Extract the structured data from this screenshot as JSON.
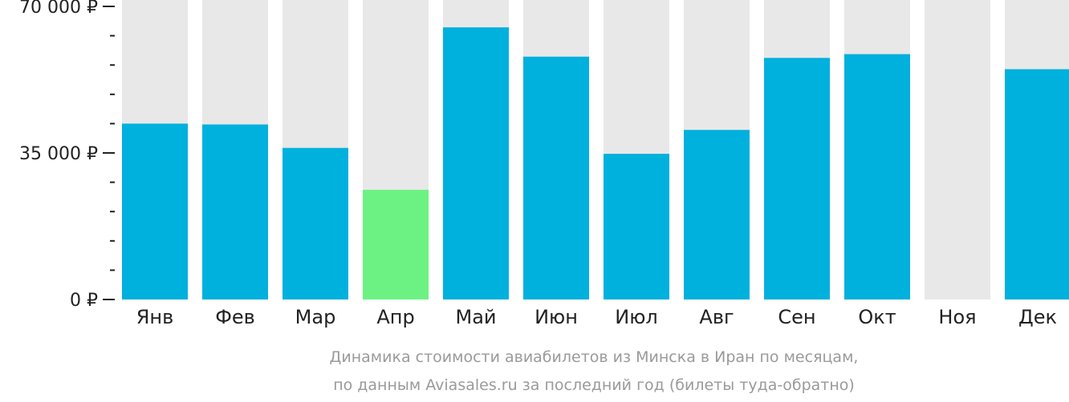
{
  "chart_data": {
    "type": "bar",
    "title": "",
    "xlabel": "",
    "ylabel": "",
    "ylim": [
      0,
      70000
    ],
    "y_ticks": [
      {
        "value": 0,
        "label": "0 ₽"
      },
      {
        "value": 35000,
        "label": "35 000 ₽"
      },
      {
        "value": 70000,
        "label": "70 000 ₽"
      }
    ],
    "minor_tick_step": 7000,
    "categories": [
      "Янв",
      "Фев",
      "Мар",
      "Апр",
      "Май",
      "Июн",
      "Июл",
      "Авг",
      "Сен",
      "Окт",
      "Ноя",
      "Дек"
    ],
    "values": [
      42000,
      41800,
      36200,
      26200,
      65000,
      58000,
      34800,
      40500,
      57700,
      58600,
      null,
      55000
    ],
    "highlight_index": 3,
    "legend": "none",
    "grid": false
  },
  "caption": {
    "line1": "Динамика стоимости авиабилетов из Минска в Иран по месяцам,",
    "line2": "по данным Aviasales.ru за последний год (билеты туда-обратно)"
  },
  "colors": {
    "bar": "#00b0dd",
    "bar_highlight": "#6cf283",
    "bar_background": "#e8e8e8",
    "axis": "#222222",
    "caption": "#9a9a9a"
  }
}
